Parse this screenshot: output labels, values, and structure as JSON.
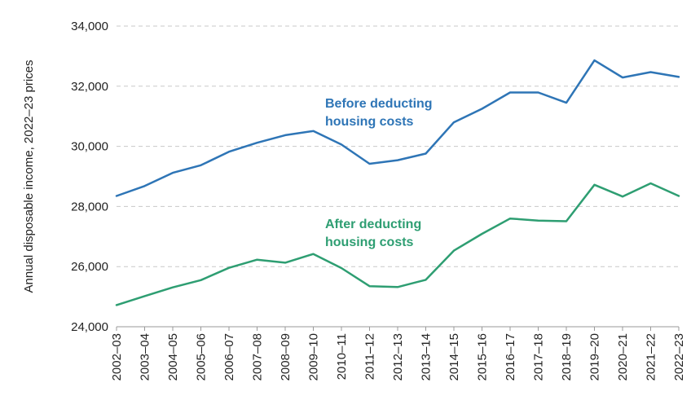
{
  "chart_data": {
    "type": "line",
    "title": "",
    "xlabel": "",
    "ylabel": "Annual disposable income, 2022–23 prices",
    "ylim": [
      24000,
      34000
    ],
    "yticks": [
      24000,
      26000,
      28000,
      30000,
      32000,
      34000
    ],
    "ytick_labels": [
      "24,000",
      "26,000",
      "28,000",
      "30,000",
      "32,000",
      "34,000"
    ],
    "grid": "horizontal dashed",
    "legend": "inline labels",
    "categories": [
      "2002–03",
      "2003–04",
      "2004–05",
      "2005–06",
      "2006–07",
      "2007–08",
      "2008–09",
      "2009–10",
      "2010–11",
      "2011–12",
      "2012–13",
      "2013–14",
      "2014–15",
      "2015–16",
      "2016–17",
      "2017–18",
      "2018–19",
      "2019–20",
      "2020–21",
      "2021–22",
      "2022–23"
    ],
    "series": [
      {
        "name": "Before deducting housing costs",
        "label_lines": [
          "Before deducting",
          "housing costs"
        ],
        "color": "#2E75B6",
        "values": [
          28350,
          28680,
          29120,
          29370,
          29820,
          30120,
          30370,
          30510,
          30060,
          29420,
          29540,
          29760,
          30800,
          31250,
          31790,
          31790,
          31450,
          32860,
          32290,
          32470,
          32310
        ]
      },
      {
        "name": "After deducting housing costs",
        "label_lines": [
          "After deducting",
          "housing costs"
        ],
        "color": "#2E9E72",
        "values": [
          24720,
          25020,
          25310,
          25550,
          25960,
          26230,
          26130,
          26420,
          25950,
          25350,
          25320,
          25560,
          26530,
          27090,
          27600,
          27530,
          27510,
          28720,
          28330,
          28770,
          28350
        ]
      }
    ]
  }
}
